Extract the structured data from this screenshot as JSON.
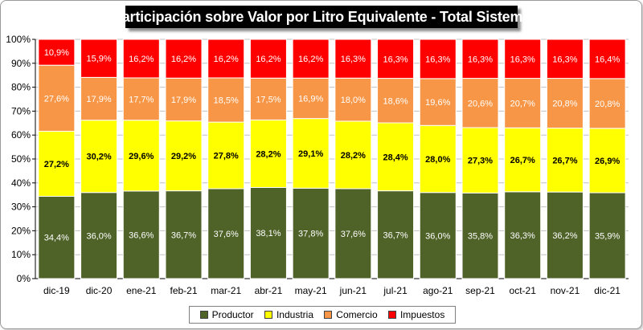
{
  "chart_data": {
    "type": "bar",
    "stacked": true,
    "title": "Participación sobre Valor por Litro Equivalente - Total Sistema",
    "xlabel": "",
    "ylabel": "",
    "ylim": [
      0,
      100
    ],
    "yticks": [
      "0%",
      "10%",
      "20%",
      "30%",
      "40%",
      "50%",
      "60%",
      "70%",
      "80%",
      "90%",
      "100%"
    ],
    "categories": [
      "dic-19",
      "dic-20",
      "ene-21",
      "feb-21",
      "mar-21",
      "abr-21",
      "may-21",
      "jun-21",
      "jul-21",
      "ago-21",
      "sep-21",
      "oct-21",
      "nov-21",
      "dic-21"
    ],
    "series": [
      {
        "name": "Productor",
        "color": "#4f6228",
        "label_color": "#ffffff",
        "label_bold": false,
        "values": [
          34.4,
          36.0,
          36.6,
          36.7,
          37.6,
          38.1,
          37.8,
          37.6,
          36.7,
          36.0,
          35.8,
          36.3,
          36.2,
          35.9
        ],
        "labels": [
          "34,4%",
          "36,0%",
          "36,6%",
          "36,7%",
          "37,6%",
          "38,1%",
          "37,8%",
          "37,6%",
          "36,7%",
          "36,0%",
          "35,8%",
          "36,3%",
          "36,2%",
          "35,9%"
        ]
      },
      {
        "name": "Industria",
        "color": "#ffff00",
        "label_color": "#000000",
        "label_bold": true,
        "values": [
          27.2,
          30.2,
          29.6,
          29.2,
          27.8,
          28.2,
          29.1,
          28.2,
          28.4,
          28.0,
          27.3,
          26.7,
          26.7,
          26.9
        ],
        "labels": [
          "27,2%",
          "30,2%",
          "29,6%",
          "29,2%",
          "27,8%",
          "28,2%",
          "29,1%",
          "28,2%",
          "28,4%",
          "28,0%",
          "27,3%",
          "26,7%",
          "26,7%",
          "26,9%"
        ]
      },
      {
        "name": "Comercio",
        "color": "#f79646",
        "label_color": "#ffffff",
        "label_bold": false,
        "values": [
          27.6,
          17.9,
          17.7,
          17.9,
          18.5,
          17.5,
          16.9,
          18.0,
          18.6,
          19.6,
          20.6,
          20.7,
          20.8,
          20.8
        ],
        "labels": [
          "27,6%",
          "17,9%",
          "17,7%",
          "17,9%",
          "18,5%",
          "17,5%",
          "16,9%",
          "18,0%",
          "18,6%",
          "19,6%",
          "20,6%",
          "20,7%",
          "20,8%",
          "20,8%"
        ]
      },
      {
        "name": "Impuestos",
        "color": "#ff0000",
        "label_color": "#ffffff",
        "label_bold": false,
        "values": [
          10.9,
          15.9,
          16.2,
          16.2,
          16.2,
          16.2,
          16.2,
          16.3,
          16.3,
          16.3,
          16.3,
          16.3,
          16.3,
          16.4
        ],
        "labels": [
          "10,9%",
          "15,9%",
          "16,2%",
          "16,2%",
          "16,2%",
          "16,2%",
          "16,2%",
          "16,3%",
          "16,3%",
          "16,3%",
          "16,3%",
          "16,3%",
          "16,3%",
          "16,4%"
        ]
      }
    ],
    "legend_position": "bottom"
  }
}
